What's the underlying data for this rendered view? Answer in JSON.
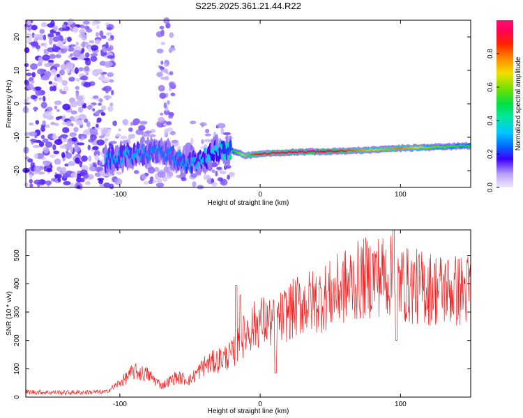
{
  "title": "S225.2025.361.21.44.R22",
  "chart_data": [
    {
      "type": "heatmap",
      "title": "S225.2025.361.21.44.R22",
      "xlabel": "Height of straight line (km)",
      "ylabel": "Frequency (Hz)",
      "xlim": [
        -167,
        150
      ],
      "ylim": [
        -25,
        25
      ],
      "x_ticks": [
        -100,
        0,
        100
      ],
      "y_ticks": [
        -20,
        -10,
        0,
        10,
        20
      ],
      "colorbar": {
        "label": "Normalized spectral amplitude",
        "range": [
          0,
          1
        ],
        "ticks": [
          0.0,
          0.2,
          0.4,
          0.6,
          0.8
        ],
        "tick_labels": [
          "0.0",
          "0.2",
          "0.4",
          "0.6",
          "0.8"
        ]
      },
      "ridge": {
        "description": "dominant spectral ridge",
        "x": [
          -110,
          -90,
          -70,
          -50,
          -30,
          -20,
          -10,
          0,
          20,
          50,
          80,
          100,
          120,
          150
        ],
        "frequency": [
          -17,
          -15,
          -14,
          -18,
          -14,
          -14,
          -15.5,
          -15,
          -14.5,
          -14.2,
          -13.8,
          -13.3,
          -13,
          -12.5
        ],
        "amplitude": [
          0.3,
          0.3,
          0.25,
          0.3,
          0.35,
          0.45,
          0.75,
          0.9,
          0.95,
          0.95,
          0.7,
          0.8,
          0.6,
          0.5
        ]
      }
    },
    {
      "type": "line",
      "xlabel": "Height of straight line (km)",
      "ylabel": "SNR (10 * v/v)",
      "xlim": [
        -167,
        150
      ],
      "ylim": [
        0,
        590
      ],
      "x_ticks": [
        -100,
        0,
        100
      ],
      "y_ticks": [
        0,
        100,
        200,
        300,
        400,
        500
      ],
      "color": "#ee2222",
      "series": [
        {
          "name": "SNR",
          "envelope_x": [
            -167,
            -140,
            -110,
            -100,
            -90,
            -80,
            -70,
            -60,
            -50,
            -40,
            -30,
            -20,
            -10,
            0,
            10,
            20,
            30,
            40,
            50,
            60,
            70,
            80,
            90,
            95,
            100,
            110,
            120,
            130,
            140,
            150
          ],
          "envelope_y": [
            18,
            16,
            18,
            50,
            90,
            80,
            40,
            70,
            60,
            110,
            130,
            150,
            230,
            270,
            260,
            300,
            330,
            340,
            360,
            390,
            410,
            430,
            430,
            420,
            400,
            390,
            385,
            380,
            375,
            380
          ],
          "spikes": [
            {
              "x": -17,
              "y": 395
            },
            {
              "x": -14,
              "y": 360
            },
            {
              "x": 95,
              "y": 590
            },
            {
              "x": 97,
              "y": 200
            },
            {
              "x": 11,
              "y": 85
            }
          ]
        }
      ]
    }
  ]
}
